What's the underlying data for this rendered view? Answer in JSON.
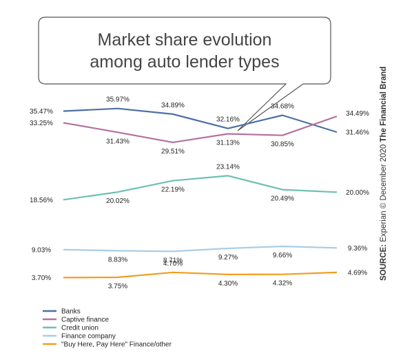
{
  "chart_data": {
    "type": "line",
    "title_lines": [
      "Market share evolution",
      "among auto lender types"
    ],
    "source": {
      "label": "SOURCE:",
      "text": " Experian © December 2020 ",
      "brand": "The Financial Brand"
    },
    "legend_placement": "bottom-left",
    "grid": false,
    "series": [
      {
        "name": "Banks",
        "color": "#4a6fa5",
        "values": [
          35.47,
          35.97,
          34.89,
          32.16,
          34.68,
          31.46
        ],
        "labels": [
          "35.47%",
          "35.97%",
          "34.89%",
          "32.16%",
          "34.68%",
          "31.46%"
        ]
      },
      {
        "name": "Captive finance",
        "color": "#b4709f",
        "values": [
          33.25,
          31.43,
          29.51,
          31.13,
          30.85,
          34.49
        ],
        "labels": [
          "33.25%",
          "31.43%",
          "29.51%",
          "31.13%",
          "30.85%",
          "34.49%"
        ]
      },
      {
        "name": "Credit union",
        "color": "#6dbfb3",
        "values": [
          18.56,
          20.02,
          22.19,
          23.14,
          20.49,
          20.0
        ],
        "labels": [
          "18.56%",
          "20.02%",
          "22.19%",
          "23.14%",
          "20.49%",
          "20.00%"
        ]
      },
      {
        "name": "Finance company",
        "color": "#a9cce6",
        "values": [
          9.03,
          8.83,
          8.71,
          9.27,
          9.66,
          9.36
        ],
        "labels": [
          "9.03%",
          "8.83%",
          "8.71%",
          "9.27%",
          "9.66%",
          "9.36%"
        ]
      },
      {
        "name": "\"Buy Here, Pay Here\" Finance/other",
        "color": "#f39c1e",
        "values": [
          3.7,
          3.75,
          4.7,
          4.3,
          4.32,
          4.69
        ],
        "labels": [
          "3.70%",
          "3.75%",
          "4.70%",
          "4.30%",
          "4.32%",
          "4.69%"
        ]
      }
    ]
  }
}
